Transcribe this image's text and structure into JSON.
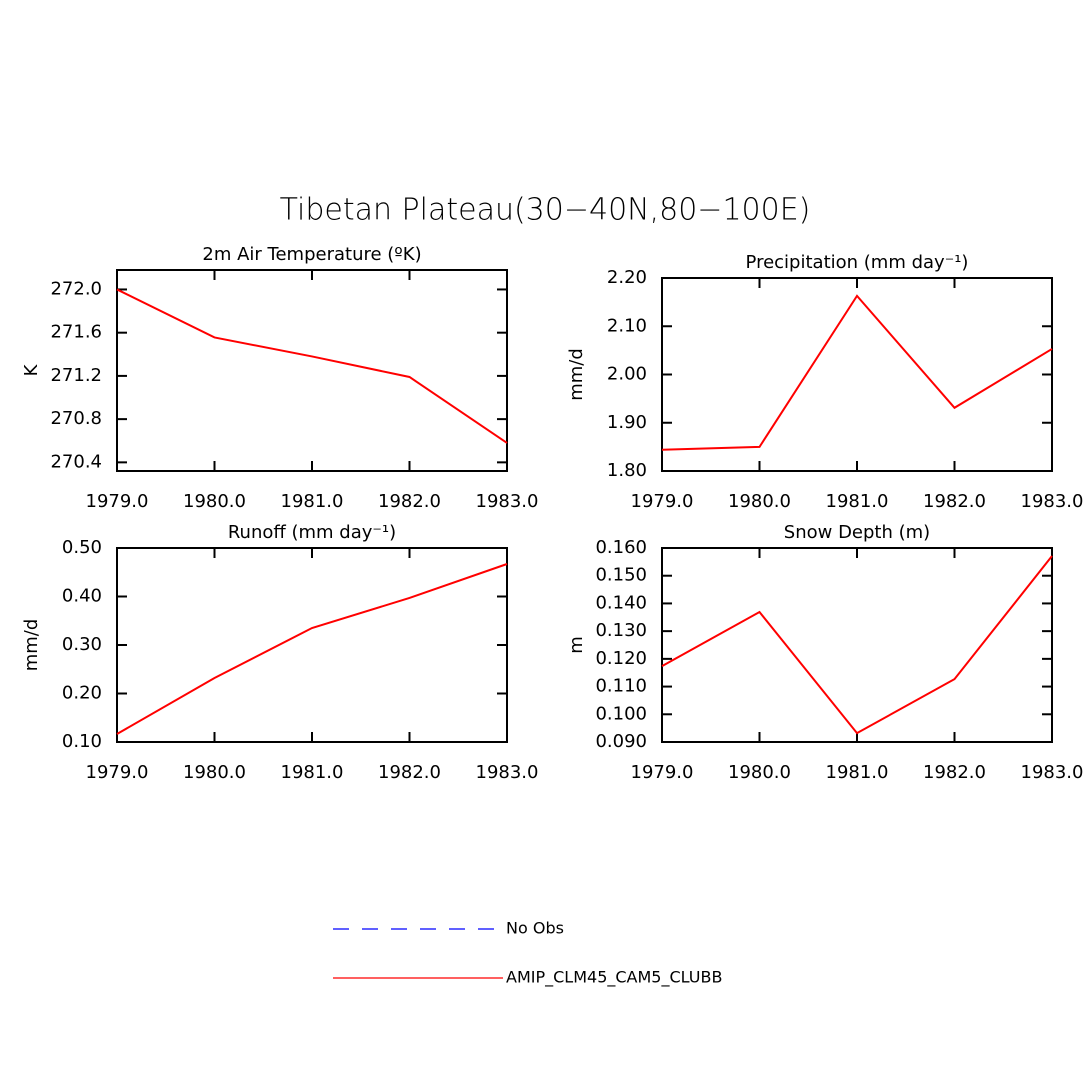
{
  "title": "Tibetan Plateau(30−40N,80−100E)",
  "legend": [
    {
      "name": "No Obs",
      "color": "#0000ff",
      "dash": true
    },
    {
      "name": "AMIP_CLM45_CAM5_CLUBB",
      "color": "#ff0000",
      "dash": false
    }
  ],
  "chart_data": [
    {
      "type": "line",
      "title": "2m Air Temperature (ºK)",
      "ylabel": "K",
      "x": [
        1979,
        1980,
        1981,
        1982,
        1983
      ],
      "series": [
        {
          "color": "#ff0000",
          "values": [
            272.0,
            271.556,
            271.38,
            271.19,
            270.58
          ]
        }
      ],
      "xlim": [
        1979,
        1983
      ],
      "xticks": [
        {
          "value": 1979,
          "label": "1979.0"
        },
        {
          "value": 1980,
          "label": "1980.0"
        },
        {
          "value": 1981,
          "label": "1981.0"
        },
        {
          "value": 1982,
          "label": "1982.0"
        },
        {
          "value": 1983,
          "label": "1983.0"
        }
      ],
      "ylim": [
        270.32,
        272.18
      ],
      "yticks": [
        {
          "value": 270.4,
          "label": "270.4"
        },
        {
          "value": 270.8,
          "label": "270.8"
        },
        {
          "value": 271.2,
          "label": "271.2"
        },
        {
          "value": 271.6,
          "label": "271.6"
        },
        {
          "value": 272.0,
          "label": "272.0"
        }
      ]
    },
    {
      "type": "line",
      "title": "Precipitation (mm day⁻¹)",
      "ylabel": "mm/d",
      "x": [
        1979,
        1980,
        1981,
        1982,
        1983
      ],
      "series": [
        {
          "color": "#ff0000",
          "values": [
            1.844,
            1.85,
            2.163,
            1.931,
            2.053
          ]
        }
      ],
      "xlim": [
        1979,
        1983
      ],
      "xticks": [
        {
          "value": 1979,
          "label": "1979.0"
        },
        {
          "value": 1980,
          "label": "1980.0"
        },
        {
          "value": 1981,
          "label": "1981.0"
        },
        {
          "value": 1982,
          "label": "1982.0"
        },
        {
          "value": 1983,
          "label": "1983.0"
        }
      ],
      "ylim": [
        1.8,
        2.2
      ],
      "yticks": [
        {
          "value": 1.8,
          "label": "1.80"
        },
        {
          "value": 1.9,
          "label": "1.90"
        },
        {
          "value": 2.0,
          "label": "2.00"
        },
        {
          "value": 2.1,
          "label": "2.10"
        },
        {
          "value": 2.2,
          "label": "2.20"
        }
      ]
    },
    {
      "type": "line",
      "title": "Runoff (mm day⁻¹)",
      "ylabel": "mm/d",
      "x": [
        1979,
        1980,
        1981,
        1982,
        1983
      ],
      "series": [
        {
          "color": "#ff0000",
          "values": [
            0.1165,
            0.232,
            0.335,
            0.397,
            0.467
          ]
        }
      ],
      "xlim": [
        1979,
        1983
      ],
      "xticks": [
        {
          "value": 1979,
          "label": "1979.0"
        },
        {
          "value": 1980,
          "label": "1980.0"
        },
        {
          "value": 1981,
          "label": "1981.0"
        },
        {
          "value": 1982,
          "label": "1982.0"
        },
        {
          "value": 1983,
          "label": "1983.0"
        }
      ],
      "ylim": [
        0.1,
        0.5
      ],
      "yticks": [
        {
          "value": 0.1,
          "label": "0.10"
        },
        {
          "value": 0.2,
          "label": "0.20"
        },
        {
          "value": 0.3,
          "label": "0.30"
        },
        {
          "value": 0.4,
          "label": "0.40"
        },
        {
          "value": 0.5,
          "label": "0.50"
        }
      ]
    },
    {
      "type": "line",
      "title": "Snow Depth (m)",
      "ylabel": "m",
      "x": [
        1979,
        1980,
        1981,
        1982,
        1983
      ],
      "series": [
        {
          "color": "#ff0000",
          "values": [
            0.1174,
            0.1369,
            0.0932,
            0.1127,
            0.1571
          ]
        }
      ],
      "xlim": [
        1979,
        1983
      ],
      "xticks": [
        {
          "value": 1979,
          "label": "1979.0"
        },
        {
          "value": 1980,
          "label": "1980.0"
        },
        {
          "value": 1981,
          "label": "1981.0"
        },
        {
          "value": 1982,
          "label": "1982.0"
        },
        {
          "value": 1983,
          "label": "1983.0"
        }
      ],
      "ylim": [
        0.09,
        0.16
      ],
      "yticks": [
        {
          "value": 0.09,
          "label": "0.090"
        },
        {
          "value": 0.1,
          "label": "0.100"
        },
        {
          "value": 0.11,
          "label": "0.110"
        },
        {
          "value": 0.12,
          "label": "0.120"
        },
        {
          "value": 0.13,
          "label": "0.130"
        },
        {
          "value": 0.14,
          "label": "0.140"
        },
        {
          "value": 0.15,
          "label": "0.150"
        },
        {
          "value": 0.16,
          "label": "0.160"
        }
      ]
    }
  ]
}
